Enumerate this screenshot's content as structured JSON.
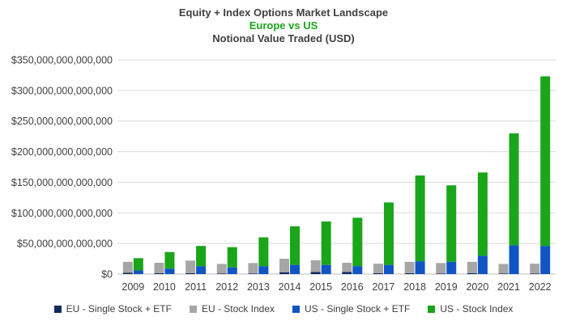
{
  "title_lines": [
    {
      "text": "Equity + Index Options Market Landscape",
      "color": "#404040"
    },
    {
      "text": "Europe vs US",
      "color": "#1aa51a"
    },
    {
      "text": "Notional Value Traded (USD)",
      "color": "#404040"
    }
  ],
  "chart_data": {
    "type": "bar",
    "stacking": "stacked, two stacks per year (EU left, US right)",
    "categories": [
      "2009",
      "2010",
      "2011",
      "2012",
      "2013",
      "2014",
      "2015",
      "2016",
      "2017",
      "2018",
      "2019",
      "2020",
      "2021",
      "2022"
    ],
    "ylim": [
      0,
      350000000000000
    ],
    "yticks": [
      {
        "value": 0,
        "label": "$0"
      },
      {
        "value": 50000000000000,
        "label": "$50,000,000,000,000"
      },
      {
        "value": 100000000000000,
        "label": "$100,000,000,000,000"
      },
      {
        "value": 150000000000000,
        "label": "$150,000,000,000,000"
      },
      {
        "value": 200000000000000,
        "label": "$200,000,000,000,000"
      },
      {
        "value": 250000000000000,
        "label": "$250,000,000,000,000"
      },
      {
        "value": 300000000000000,
        "label": "$300,000,000,000,000"
      },
      {
        "value": 350000000000000,
        "label": "$350,000,000,000,000"
      }
    ],
    "grid": true,
    "legend_position": "bottom",
    "series": [
      {
        "name": "EU - Single Stock + ETF",
        "stack": "EU",
        "color": "#0f2a5c",
        "values": [
          2000000000000,
          1500000000000,
          1500000000000,
          1000000000000,
          1000000000000,
          3000000000000,
          3500000000000,
          3500000000000,
          1500000000000,
          1500000000000,
          1000000000000,
          1500000000000,
          1000000000000,
          1000000000000
        ]
      },
      {
        "name": "EU - Stock Index",
        "stack": "EU",
        "color": "#a6a6a6",
        "values": [
          18000000000000,
          17000000000000,
          20500000000000,
          15500000000000,
          17000000000000,
          22000000000000,
          19000000000000,
          15000000000000,
          15500000000000,
          18500000000000,
          17000000000000,
          18500000000000,
          15500000000000,
          16000000000000
        ]
      },
      {
        "name": "US - Single Stock + ETF",
        "stack": "US",
        "color": "#1155c4",
        "values": [
          6000000000000,
          9000000000000,
          13000000000000,
          11000000000000,
          13000000000000,
          15000000000000,
          15000000000000,
          13000000000000,
          15000000000000,
          21000000000000,
          20000000000000,
          30000000000000,
          47000000000000,
          46000000000000
        ]
      },
      {
        "name": "US - Stock Index",
        "stack": "US",
        "color": "#1aa51a",
        "values": [
          20000000000000,
          27000000000000,
          33000000000000,
          33000000000000,
          47000000000000,
          63000000000000,
          71000000000000,
          79000000000000,
          102000000000000,
          140000000000000,
          125000000000000,
          136000000000000,
          183000000000000,
          277000000000000
        ]
      }
    ]
  }
}
